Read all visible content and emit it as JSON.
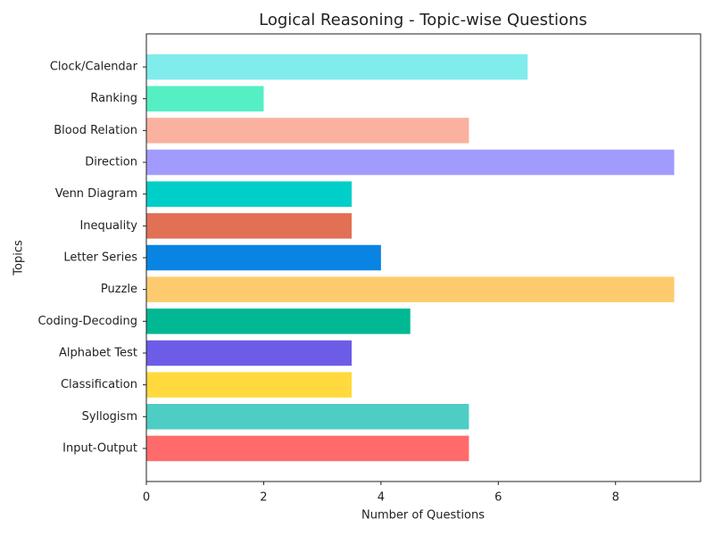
{
  "chart_data": {
    "type": "barh",
    "title": "Logical Reasoning - Topic-wise Questions",
    "x_label": "Number of Questions",
    "y_label": "Topics",
    "categories": [
      "Input-Output",
      "Syllogism",
      "Classification",
      "Alphabet Test",
      "Coding-Decoding",
      "Puzzle",
      "Letter Series",
      "Inequality",
      "Venn Diagram",
      "Direction",
      "Blood Relation",
      "Ranking",
      "Clock/Calendar"
    ],
    "values": [
      5.5,
      5.5,
      3.5,
      3.5,
      4.5,
      9,
      4,
      3.5,
      3.5,
      9,
      5.5,
      2,
      6.5
    ],
    "colors": [
      "#ff6b6b",
      "#4ecdc4",
      "#ffd93d",
      "#6c5ce7",
      "#00b894",
      "#fdcb6e",
      "#0984e3",
      "#e17055",
      "#00cec9",
      "#a29bfe",
      "#fab1a0",
      "#55efc4",
      "#81ecec"
    ],
    "xlim": [
      0,
      9.45
    ],
    "xticks": [
      0,
      2,
      4,
      6,
      8
    ],
    "grid": false
  }
}
